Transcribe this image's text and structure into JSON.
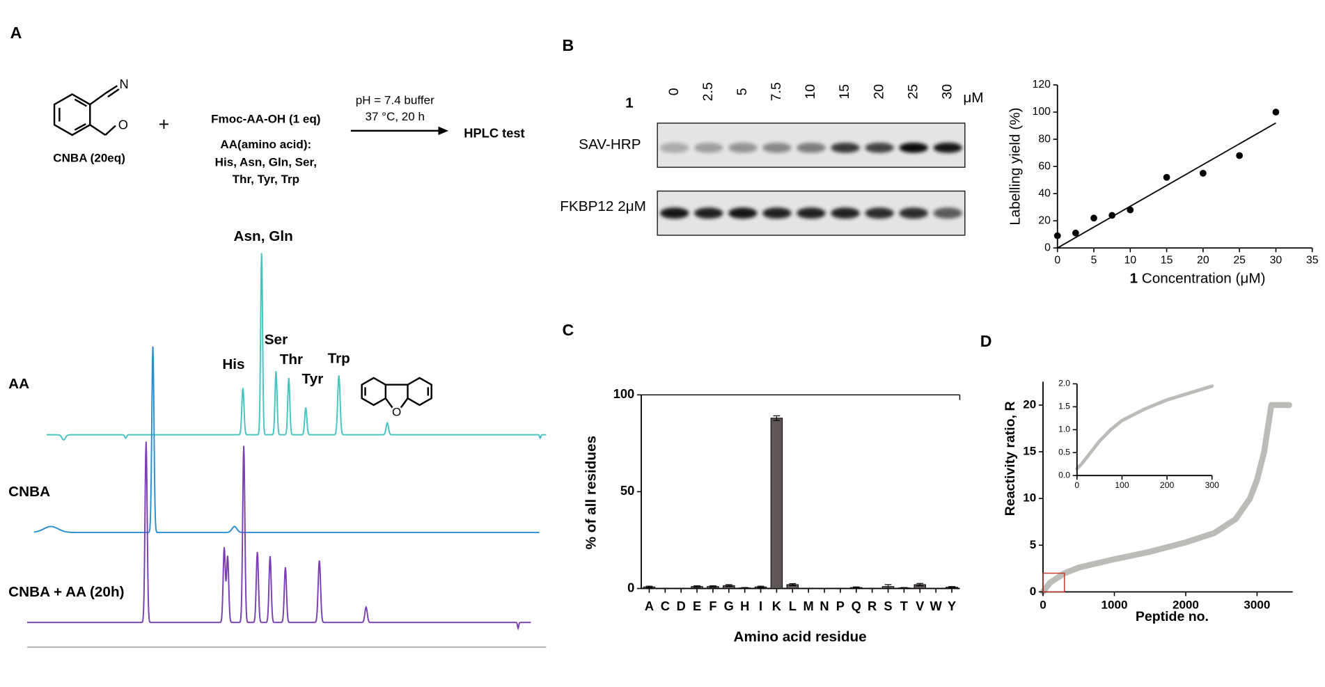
{
  "panels": {
    "a": "A",
    "b": "B",
    "c": "C",
    "d": "D"
  },
  "scheme": {
    "reagent": "CNBA (20eq)",
    "plus": "+",
    "substrate": "Fmoc-AA-OH (1 eq)",
    "aa_title": "AA(amino acid):",
    "aa_line1": "His, Asn, Gln, Ser,",
    "aa_line2": "Thr, Tyr, Trp",
    "condition1": "pH = 7.4 buffer",
    "condition2": "37 °C, 20 h",
    "product": "HPLC test",
    "atom_n": "N",
    "atom_o": "O"
  },
  "hplc": {
    "traces": [
      "AA",
      "CNBA",
      "CNBA + AA (20h)"
    ],
    "peaks": [
      "Asn, Gln",
      "His",
      "Ser",
      "Thr",
      "Tyr",
      "Trp"
    ],
    "atom_o": "O"
  },
  "blot": {
    "compound": "1",
    "lanes": [
      "0",
      "2.5",
      "5",
      "7.5",
      "10",
      "15",
      "20",
      "25",
      "30"
    ],
    "unit": "μM",
    "rows": [
      "SAV-HRP",
      "FKBP12 2μM"
    ]
  },
  "chart_data": [
    {
      "type": "scatter",
      "x": [
        0,
        2.5,
        5,
        7.5,
        10,
        15,
        20,
        25,
        30
      ],
      "values": [
        9,
        11,
        22,
        24,
        28,
        52,
        55,
        68,
        100
      ],
      "color": "#000000",
      "trendline": {
        "x": [
          0,
          30
        ],
        "values": [
          0,
          92
        ]
      },
      "ylabel": "Labelling yield (%)",
      "xlabel_bold": "1",
      "xlabel": " Concentration (μM)",
      "xlim": [
        0,
        35
      ],
      "xticks": [
        0,
        5,
        10,
        15,
        20,
        25,
        30,
        35
      ],
      "ylim": [
        0,
        120
      ],
      "yticks": [
        0,
        20,
        40,
        60,
        80,
        100,
        120
      ]
    },
    {
      "type": "bar",
      "categories": [
        "A",
        "C",
        "D",
        "E",
        "F",
        "G",
        "H",
        "I",
        "K",
        "L",
        "M",
        "N",
        "P",
        "Q",
        "R",
        "S",
        "T",
        "V",
        "W",
        "Y"
      ],
      "values": [
        0.8,
        0,
        0,
        1,
        1,
        1.5,
        0.3,
        0.8,
        88,
        2,
        0,
        0,
        0,
        0.5,
        0,
        1,
        0.3,
        2,
        0,
        0.7
      ],
      "errors": [
        0.4,
        0,
        0,
        0.4,
        0.4,
        0.5,
        0.2,
        0.4,
        1.2,
        0.5,
        0,
        0,
        0,
        0.3,
        0,
        1,
        0.2,
        0.6,
        0,
        0.3
      ],
      "color": "#5f5656",
      "ylabel": "% of all residues",
      "xlabel": "Amino acid residue",
      "ylim": [
        0,
        100
      ],
      "yticks": [
        0,
        50,
        100
      ]
    },
    {
      "type": "line",
      "x": [
        0,
        50,
        100,
        300,
        500,
        1000,
        1500,
        2000,
        2400,
        2700,
        2900,
        3000,
        3100,
        3200,
        3450
      ],
      "values": [
        0,
        0.5,
        1,
        2,
        2.6,
        3.5,
        4.3,
        5.3,
        6.3,
        7.8,
        10,
        12,
        15,
        20,
        20
      ],
      "color": "#bdbbb8",
      "ylabel": "Reactivity ratio, R",
      "xlabel": "Peptide no.",
      "xlim": [
        0,
        3500
      ],
      "xticks": [
        0,
        1000,
        2000,
        3000
      ],
      "ylim": [
        0,
        22.5
      ],
      "yticks": [
        0,
        5,
        10,
        15,
        20
      ],
      "inset": {
        "x": [
          0,
          10,
          30,
          50,
          75,
          100,
          150,
          200,
          250,
          300
        ],
        "values": [
          0.15,
          0.25,
          0.5,
          0.75,
          1.0,
          1.2,
          1.45,
          1.65,
          1.8,
          1.95
        ],
        "xlim": [
          0,
          300
        ],
        "xticks": [
          0,
          100,
          200,
          300
        ],
        "ylim": [
          0,
          2
        ],
        "yticks": [
          {
            "value": 0,
            "label": "0.0"
          },
          {
            "value": 0.5,
            "label": "0.5"
          },
          {
            "value": 1,
            "label": "1.0"
          },
          {
            "value": 1.5,
            "label": "1.5"
          },
          {
            "value": 2,
            "label": "2.0"
          }
        ]
      }
    }
  ]
}
